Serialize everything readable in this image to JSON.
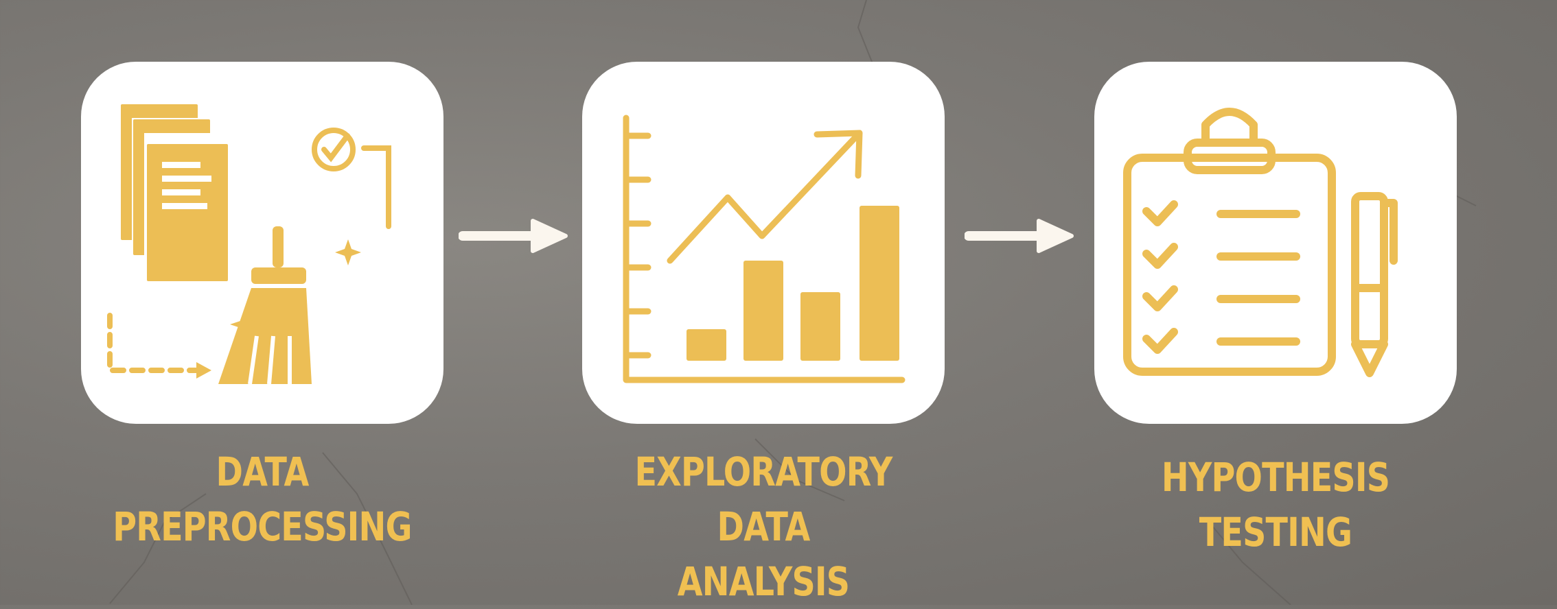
{
  "colors": {
    "accent": "#ECBE55",
    "label": "#F0C052",
    "card": "#FFFFFF",
    "arrow": "#FBF6EE",
    "background": "#7B7874"
  },
  "steps": [
    {
      "line1": "DATA",
      "line2": "PREPROCESSING",
      "icon": "data-cleaning-icon"
    },
    {
      "line1": "EXPLORATORY DATA",
      "line2": "ANALYSIS",
      "icon": "growth-chart-icon"
    },
    {
      "line1": "HYPOTHESIS",
      "line2": "TESTING",
      "icon": "clipboard-checklist-icon"
    }
  ],
  "connectors": [
    "right-arrow-icon",
    "right-arrow-icon"
  ]
}
